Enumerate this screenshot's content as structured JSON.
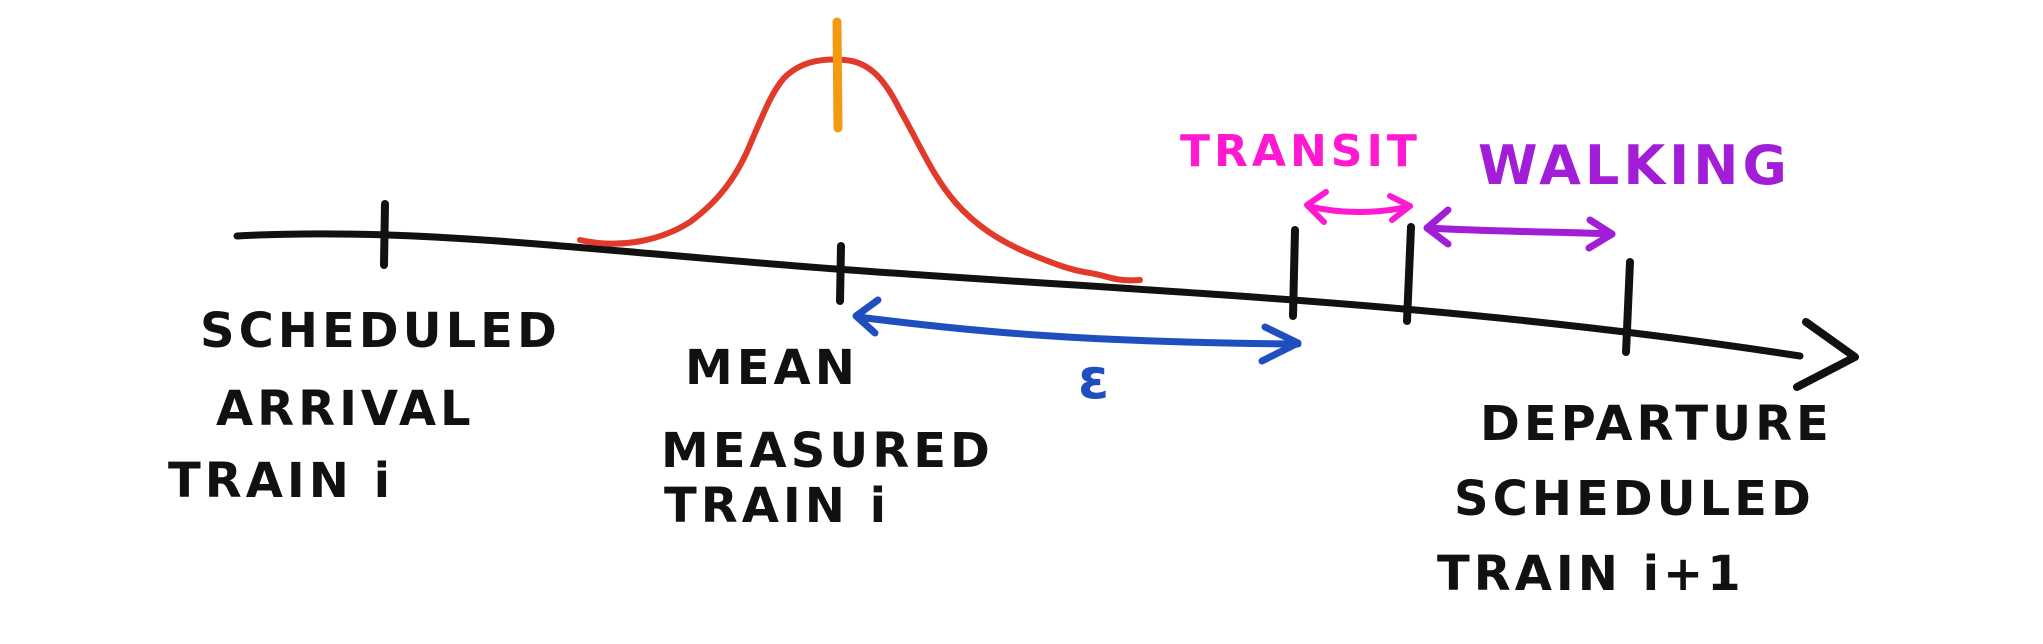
{
  "labels": {
    "scheduled_arrival": [
      "SCHEDULED",
      "ARRIVAL",
      "TRAIN i"
    ],
    "mean_measured": [
      "MEAN",
      "MEASURED",
      "TRAIN i"
    ],
    "departure_scheduled": [
      "DEPARTURE",
      "SCHEDULED",
      "TRAIN i+1"
    ],
    "transit": "TRANSIT",
    "walking": "WALKING",
    "epsilon": "ε"
  },
  "colors": {
    "timeline": "#111111",
    "distribution_curve": "#e23a2a",
    "mean_marker": "#f29b12",
    "epsilon_arrow": "#1f4fbf",
    "transit_arrow": "#ff19d0",
    "walking_arrow": "#a11ed6"
  }
}
